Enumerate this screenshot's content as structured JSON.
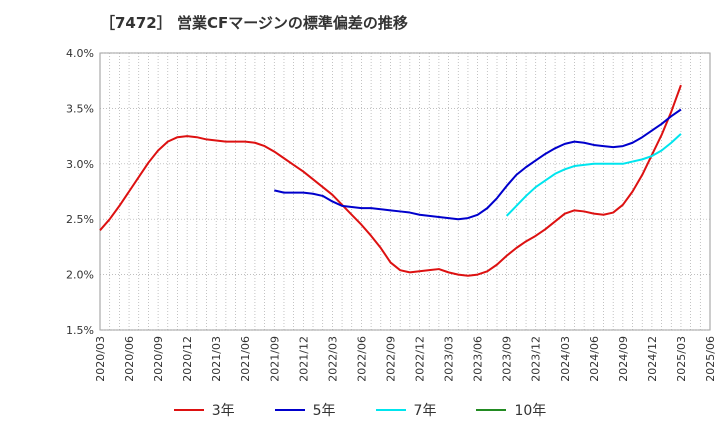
{
  "chart_data": {
    "type": "line",
    "title": "［7472］ 営業CFマージンの標準偏差の推移",
    "xlabel": "",
    "ylabel": "",
    "ylim": [
      1.5,
      4.0
    ],
    "y_ticks": [
      "1.5%",
      "2.0%",
      "2.5%",
      "3.0%",
      "3.5%",
      "4.0%"
    ],
    "y_tick_values": [
      1.5,
      2.0,
      2.5,
      3.0,
      3.5,
      4.0
    ],
    "x_ticks": [
      "2020/03",
      "2020/06",
      "2020/09",
      "2020/12",
      "2021/03",
      "2021/06",
      "2021/09",
      "2021/12",
      "2022/03",
      "2022/06",
      "2022/09",
      "2022/12",
      "2023/03",
      "2023/06",
      "2023/09",
      "2023/12",
      "2024/03",
      "2024/06",
      "2024/09",
      "2024/12",
      "2025/03",
      "2025/06"
    ],
    "grid": true,
    "legend_position": "bottom",
    "series": [
      {
        "name": "3年",
        "color": "#dd1111",
        "points": [
          [
            "2020/03",
            2.4
          ],
          [
            "2020/04",
            2.5
          ],
          [
            "2020/05",
            2.62
          ],
          [
            "2020/06",
            2.75
          ],
          [
            "2020/07",
            2.88
          ],
          [
            "2020/08",
            3.01
          ],
          [
            "2020/09",
            3.12
          ],
          [
            "2020/10",
            3.2
          ],
          [
            "2020/11",
            3.24
          ],
          [
            "2020/12",
            3.25
          ],
          [
            "2021/01",
            3.24
          ],
          [
            "2021/02",
            3.22
          ],
          [
            "2021/03",
            3.21
          ],
          [
            "2021/04",
            3.2
          ],
          [
            "2021/05",
            3.2
          ],
          [
            "2021/06",
            3.2
          ],
          [
            "2021/07",
            3.19
          ],
          [
            "2021/08",
            3.16
          ],
          [
            "2021/09",
            3.11
          ],
          [
            "2021/10",
            3.05
          ],
          [
            "2021/11",
            2.99
          ],
          [
            "2021/12",
            2.93
          ],
          [
            "2022/01",
            2.86
          ],
          [
            "2022/02",
            2.79
          ],
          [
            "2022/03",
            2.72
          ],
          [
            "2022/04",
            2.63
          ],
          [
            "2022/05",
            2.54
          ],
          [
            "2022/06",
            2.45
          ],
          [
            "2022/07",
            2.35
          ],
          [
            "2022/08",
            2.24
          ],
          [
            "2022/09",
            2.11
          ],
          [
            "2022/10",
            2.04
          ],
          [
            "2022/11",
            2.02
          ],
          [
            "2022/12",
            2.03
          ],
          [
            "2023/01",
            2.04
          ],
          [
            "2023/02",
            2.05
          ],
          [
            "2023/03",
            2.02
          ],
          [
            "2023/04",
            2.0
          ],
          [
            "2023/05",
            1.99
          ],
          [
            "2023/06",
            2.0
          ],
          [
            "2023/07",
            2.03
          ],
          [
            "2023/08",
            2.09
          ],
          [
            "2023/09",
            2.17
          ],
          [
            "2023/10",
            2.24
          ],
          [
            "2023/11",
            2.3
          ],
          [
            "2023/12",
            2.35
          ],
          [
            "2024/01",
            2.41
          ],
          [
            "2024/02",
            2.48
          ],
          [
            "2024/03",
            2.55
          ],
          [
            "2024/04",
            2.58
          ],
          [
            "2024/05",
            2.57
          ],
          [
            "2024/06",
            2.55
          ],
          [
            "2024/07",
            2.54
          ],
          [
            "2024/08",
            2.56
          ],
          [
            "2024/09",
            2.63
          ],
          [
            "2024/10",
            2.75
          ],
          [
            "2024/11",
            2.9
          ],
          [
            "2024/12",
            3.08
          ],
          [
            "2025/01",
            3.26
          ],
          [
            "2025/02",
            3.47
          ],
          [
            "2025/03",
            3.71
          ]
        ]
      },
      {
        "name": "5年",
        "color": "#0000cc",
        "points": [
          [
            "2021/09",
            2.76
          ],
          [
            "2021/10",
            2.74
          ],
          [
            "2021/11",
            2.74
          ],
          [
            "2021/12",
            2.74
          ],
          [
            "2022/01",
            2.73
          ],
          [
            "2022/02",
            2.71
          ],
          [
            "2022/03",
            2.66
          ],
          [
            "2022/04",
            2.62
          ],
          [
            "2022/05",
            2.61
          ],
          [
            "2022/06",
            2.6
          ],
          [
            "2022/07",
            2.6
          ],
          [
            "2022/08",
            2.59
          ],
          [
            "2022/09",
            2.58
          ],
          [
            "2022/10",
            2.57
          ],
          [
            "2022/11",
            2.56
          ],
          [
            "2022/12",
            2.54
          ],
          [
            "2023/01",
            2.53
          ],
          [
            "2023/02",
            2.52
          ],
          [
            "2023/03",
            2.51
          ],
          [
            "2023/04",
            2.5
          ],
          [
            "2023/05",
            2.51
          ],
          [
            "2023/06",
            2.54
          ],
          [
            "2023/07",
            2.6
          ],
          [
            "2023/08",
            2.69
          ],
          [
            "2023/09",
            2.8
          ],
          [
            "2023/10",
            2.9
          ],
          [
            "2023/11",
            2.97
          ],
          [
            "2023/12",
            3.03
          ],
          [
            "2024/01",
            3.09
          ],
          [
            "2024/02",
            3.14
          ],
          [
            "2024/03",
            3.18
          ],
          [
            "2024/04",
            3.2
          ],
          [
            "2024/05",
            3.19
          ],
          [
            "2024/06",
            3.17
          ],
          [
            "2024/07",
            3.16
          ],
          [
            "2024/08",
            3.15
          ],
          [
            "2024/09",
            3.16
          ],
          [
            "2024/10",
            3.19
          ],
          [
            "2024/11",
            3.24
          ],
          [
            "2024/12",
            3.3
          ],
          [
            "2025/01",
            3.36
          ],
          [
            "2025/02",
            3.43
          ],
          [
            "2025/03",
            3.49
          ]
        ]
      },
      {
        "name": "7年",
        "color": "#00e5ee",
        "points": [
          [
            "2023/09",
            2.53
          ],
          [
            "2023/10",
            2.62
          ],
          [
            "2023/11",
            2.71
          ],
          [
            "2023/12",
            2.79
          ],
          [
            "2024/01",
            2.85
          ],
          [
            "2024/02",
            2.91
          ],
          [
            "2024/03",
            2.95
          ],
          [
            "2024/04",
            2.98
          ],
          [
            "2024/05",
            2.99
          ],
          [
            "2024/06",
            3.0
          ],
          [
            "2024/07",
            3.0
          ],
          [
            "2024/08",
            3.0
          ],
          [
            "2024/09",
            3.0
          ],
          [
            "2024/10",
            3.02
          ],
          [
            "2024/11",
            3.04
          ],
          [
            "2024/12",
            3.07
          ],
          [
            "2025/01",
            3.12
          ],
          [
            "2025/02",
            3.19
          ],
          [
            "2025/03",
            3.27
          ]
        ]
      },
      {
        "name": "10年",
        "color": "#228b22",
        "points": []
      }
    ]
  }
}
